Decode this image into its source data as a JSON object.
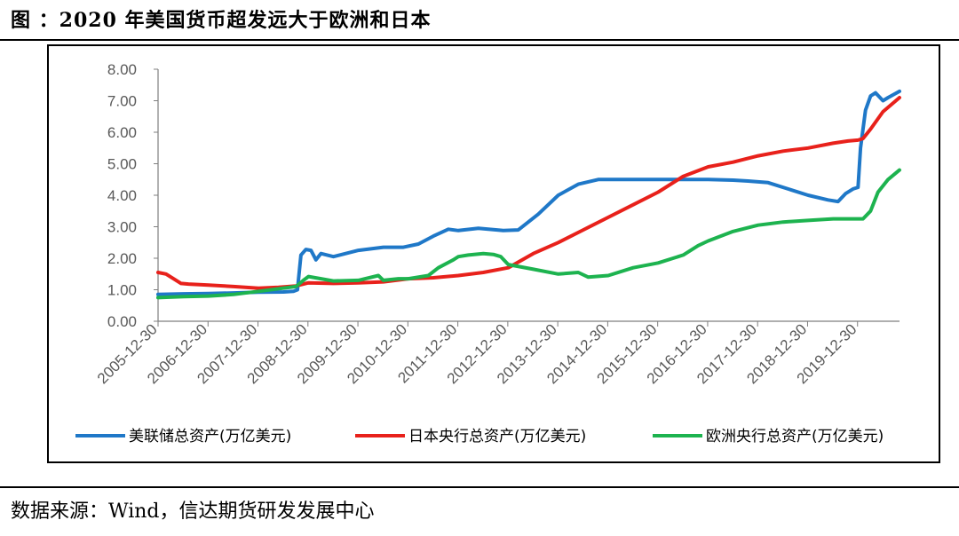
{
  "figure": {
    "title": "图  ：2020 年美国货币超发远大于欧洲和日本",
    "source": "数据来源：Wind，信达期货研发发展中心"
  },
  "chart_data": {
    "type": "line",
    "title": "",
    "xlabel": "",
    "ylabel": "",
    "ylim": [
      0,
      8
    ],
    "y_ticks": [
      "0.00",
      "1.00",
      "2.00",
      "3.00",
      "4.00",
      "5.00",
      "6.00",
      "7.00",
      "8.00"
    ],
    "x_range": [
      2005.99,
      2020.83
    ],
    "x_ticks": [
      "2005-12-30",
      "2006-12-30",
      "2007-12-30",
      "2008-12-30",
      "2009-12-30",
      "2010-12-30",
      "2011-12-30",
      "2012-12-30",
      "2013-12-30",
      "2014-12-30",
      "2015-12-30",
      "2016-12-30",
      "2017-12-30",
      "2018-12-30",
      "2019-12-30"
    ],
    "grid": false,
    "legend_position": "bottom",
    "series": [
      {
        "name": "美联储总资产(万亿美元)",
        "color": "#1F78C8",
        "x": [
          2005.99,
          2006.5,
          2007.0,
          2007.5,
          2008.0,
          2008.5,
          2008.7,
          2008.78,
          2008.85,
          2008.95,
          2009.05,
          2009.15,
          2009.25,
          2009.5,
          2010.0,
          2010.5,
          2010.9,
          2011.2,
          2011.5,
          2011.8,
          2012.0,
          2012.4,
          2012.9,
          2013.2,
          2013.6,
          2014.0,
          2014.4,
          2014.8,
          2015.2,
          2016.0,
          2017.0,
          2017.5,
          2017.8,
          2018.2,
          2018.6,
          2019.0,
          2019.4,
          2019.6,
          2019.75,
          2019.9,
          2020.0,
          2020.05,
          2020.15,
          2020.25,
          2020.35,
          2020.5,
          2020.6,
          2020.83
        ],
        "values": [
          0.85,
          0.87,
          0.88,
          0.9,
          0.92,
          0.93,
          0.95,
          1.0,
          2.1,
          2.28,
          2.25,
          1.95,
          2.15,
          2.05,
          2.25,
          2.35,
          2.35,
          2.45,
          2.7,
          2.92,
          2.88,
          2.95,
          2.88,
          2.9,
          3.4,
          4.0,
          4.35,
          4.5,
          4.5,
          4.5,
          4.5,
          4.48,
          4.45,
          4.4,
          4.2,
          4.0,
          3.85,
          3.8,
          4.05,
          4.2,
          4.25,
          5.5,
          6.7,
          7.15,
          7.25,
          7.0,
          7.1,
          7.3
        ]
      },
      {
        "name": "日本央行总资产(万亿美元)",
        "color": "#E8211B",
        "x": [
          2005.99,
          2006.15,
          2006.3,
          2006.45,
          2006.6,
          2007.0,
          2007.5,
          2008.0,
          2008.4,
          2008.75,
          2009.0,
          2009.5,
          2010.0,
          2010.5,
          2011.0,
          2011.5,
          2012.0,
          2012.5,
          2013.0,
          2013.5,
          2014.0,
          2014.5,
          2015.0,
          2015.5,
          2016.0,
          2016.5,
          2017.0,
          2017.5,
          2018.0,
          2018.5,
          2019.0,
          2019.5,
          2019.8,
          2020.0,
          2020.1,
          2020.25,
          2020.5,
          2020.83
        ],
        "values": [
          1.55,
          1.5,
          1.35,
          1.2,
          1.18,
          1.15,
          1.1,
          1.05,
          1.08,
          1.12,
          1.22,
          1.2,
          1.22,
          1.25,
          1.35,
          1.38,
          1.45,
          1.55,
          1.7,
          2.15,
          2.5,
          2.9,
          3.3,
          3.7,
          4.1,
          4.6,
          4.9,
          5.05,
          5.25,
          5.4,
          5.5,
          5.65,
          5.72,
          5.75,
          5.8,
          6.1,
          6.65,
          7.1
        ]
      },
      {
        "name": "欧洲央行总资产(万亿美元)",
        "color": "#1DB34F",
        "x": [
          2005.99,
          2006.5,
          2007.0,
          2007.5,
          2008.0,
          2008.5,
          2008.75,
          2008.9,
          2009.0,
          2009.5,
          2010.0,
          2010.4,
          2010.5,
          2010.8,
          2011.0,
          2011.4,
          2011.6,
          2011.9,
          2012.0,
          2012.2,
          2012.5,
          2012.7,
          2012.85,
          2013.0,
          2013.5,
          2014.0,
          2014.4,
          2014.6,
          2015.0,
          2015.5,
          2016.0,
          2016.5,
          2016.8,
          2017.0,
          2017.5,
          2018.0,
          2018.5,
          2019.0,
          2019.5,
          2019.8,
          2020.0,
          2020.1,
          2020.25,
          2020.4,
          2020.6,
          2020.83
        ],
        "values": [
          0.75,
          0.78,
          0.8,
          0.85,
          0.95,
          1.05,
          1.1,
          1.3,
          1.42,
          1.28,
          1.3,
          1.45,
          1.3,
          1.35,
          1.35,
          1.45,
          1.7,
          1.95,
          2.05,
          2.1,
          2.15,
          2.12,
          2.05,
          1.8,
          1.65,
          1.5,
          1.55,
          1.4,
          1.45,
          1.7,
          1.85,
          2.1,
          2.4,
          2.55,
          2.85,
          3.05,
          3.15,
          3.2,
          3.25,
          3.25,
          3.25,
          3.25,
          3.5,
          4.1,
          4.5,
          4.8
        ]
      }
    ]
  }
}
